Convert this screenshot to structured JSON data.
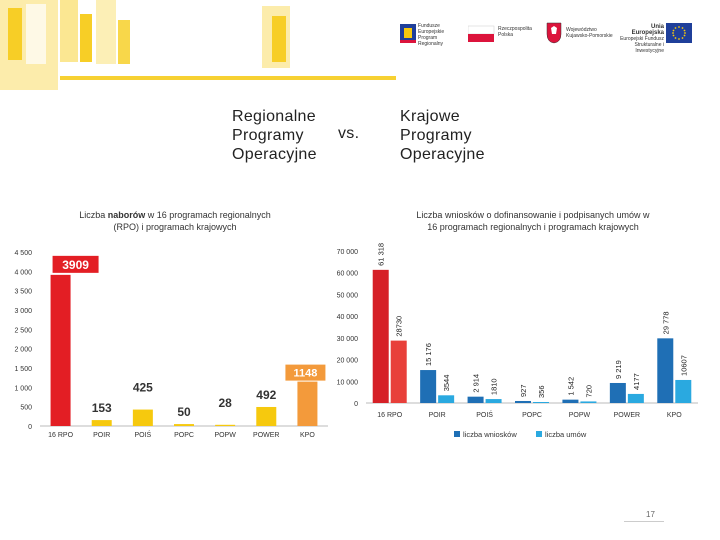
{
  "header": {
    "logos": [
      {
        "name": "Fundusze Europejskie",
        "lines": [
          "Fundusze",
          "Europejskie",
          "Program Regionalny"
        ]
      },
      {
        "name": "Rzeczpospolita Polska",
        "lines": [
          "Rzeczpospolita",
          "Polska"
        ]
      },
      {
        "name": "Województwo Kujawsko-Pomorskie",
        "lines": [
          "Województwo",
          "Kujawsko-Pomorskie"
        ]
      },
      {
        "name": "Unia Europejska",
        "lines": [
          "Unia Europejska",
          "Europejski Fundusz",
          "Strukturalne i Inwestycyjne"
        ]
      }
    ],
    "colors": {
      "accent_yellow": "#f6c90e",
      "eu_blue": "#1f3f9a",
      "pl_red": "#dc143c"
    }
  },
  "heading": {
    "left": [
      "Regionalne",
      "Programy",
      "Operacyjne"
    ],
    "vs": "vs.",
    "right": [
      "Krajowe",
      "Programy",
      "Operacyjne"
    ]
  },
  "page_number": "17",
  "chart_data": [
    {
      "type": "bar",
      "title_lines": [
        "Liczba naborów w 16 programach regionalnych",
        "(RPO) i programach krajowych"
      ],
      "title_bold_word": "naborów",
      "categories": [
        "16 RPO",
        "POIR",
        "POIŚ",
        "POPC",
        "POPW",
        "POWER",
        "KPO"
      ],
      "values": [
        3909,
        153,
        425,
        50,
        28,
        492,
        1148
      ],
      "value_labels": [
        "3909",
        "153",
        "425",
        "50",
        "28",
        "492",
        "1148"
      ],
      "colors": [
        "#e31e24",
        "#f6c90e",
        "#f6c90e",
        "#f6c90e",
        "#f6c90e",
        "#f6c90e",
        "#f39a3b"
      ],
      "ylim": [
        0,
        4500
      ],
      "yticks": [
        0,
        500,
        1000,
        1500,
        2000,
        2500,
        3000,
        3500,
        4000,
        4500
      ],
      "ytick_labels": [
        "0",
        "500",
        "1 000",
        "1 500",
        "2 000",
        "2 500",
        "3 000",
        "3 500",
        "4 000",
        "4 500"
      ],
      "grid": false
    },
    {
      "type": "bar",
      "title_lines": [
        "Liczba wniosków o dofinansowanie i podpisanych umów w",
        "16 programach regionalnych i programach krajowych"
      ],
      "categories": [
        "16 RPO",
        "POIR",
        "POIŚ",
        "POPC",
        "POPW",
        "POWER",
        "KPO"
      ],
      "series": [
        {
          "name": "liczba wniosków",
          "values": [
            61318,
            15176,
            2914,
            927,
            1542,
            9219,
            29778
          ],
          "labels": [
            "61 318",
            "15 176",
            "2 914",
            "927",
            "1 542",
            "9 219",
            "29 778"
          ],
          "colors": [
            "#d62027",
            "#1f6fb5",
            "#1f6fb5",
            "#1f6fb5",
            "#1f6fb5",
            "#1f6fb5",
            "#1f6fb5"
          ]
        },
        {
          "name": "liczba umów",
          "values": [
            28730,
            3544,
            1810,
            356,
            720,
            4177,
            10607
          ],
          "labels": [
            "28730",
            "3544",
            "1810",
            "356",
            "720",
            "4177",
            "10607"
          ],
          "colors": [
            "#e8403a",
            "#2aa9e0",
            "#2aa9e0",
            "#2aa9e0",
            "#2aa9e0",
            "#2aa9e0",
            "#2aa9e0"
          ]
        }
      ],
      "legend_colors": [
        "#1f6fb5",
        "#2aa9e0"
      ],
      "ylim": [
        0,
        70000
      ],
      "yticks": [
        0,
        10000,
        20000,
        30000,
        40000,
        50000,
        60000,
        70000
      ],
      "ytick_labels": [
        "0",
        "10 000",
        "20 000",
        "30 000",
        "40 000",
        "50 000",
        "60 000",
        "70 000"
      ],
      "legend_position": "bottom",
      "grid": false
    }
  ]
}
